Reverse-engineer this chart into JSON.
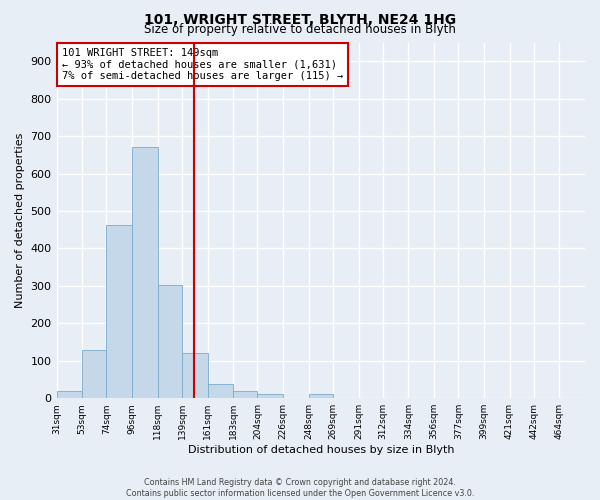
{
  "title": "101, WRIGHT STREET, BLYTH, NE24 1HG",
  "subtitle": "Size of property relative to detached houses in Blyth",
  "xlabel": "Distribution of detached houses by size in Blyth",
  "ylabel": "Number of detached properties",
  "bar_color": "#c5d8ea",
  "bar_edge_color": "#7aaac8",
  "vline_color": "#cc0000",
  "vline_x": 149,
  "bin_edges": [
    31,
    53,
    74,
    96,
    118,
    139,
    161,
    183,
    204,
    226,
    248,
    269,
    291,
    312,
    334,
    356,
    377,
    399,
    421,
    442,
    464,
    486
  ],
  "bar_heights": [
    18,
    128,
    462,
    672,
    303,
    120,
    37,
    18,
    10,
    0,
    10,
    0,
    0,
    0,
    0,
    0,
    0,
    0,
    0,
    0,
    0
  ],
  "tick_labels": [
    "31sqm",
    "53sqm",
    "74sqm",
    "96sqm",
    "118sqm",
    "139sqm",
    "161sqm",
    "183sqm",
    "204sqm",
    "226sqm",
    "248sqm",
    "269sqm",
    "291sqm",
    "312sqm",
    "334sqm",
    "356sqm",
    "377sqm",
    "399sqm",
    "421sqm",
    "442sqm",
    "464sqm"
  ],
  "annotation_text": "101 WRIGHT STREET: 149sqm\n← 93% of detached houses are smaller (1,631)\n7% of semi-detached houses are larger (115) →",
  "annotation_box_color": "#ffffff",
  "annotation_box_edge": "#cc0000",
  "ylim": [
    0,
    950
  ],
  "yticks": [
    0,
    100,
    200,
    300,
    400,
    500,
    600,
    700,
    800,
    900
  ],
  "footer_text": "Contains HM Land Registry data © Crown copyright and database right 2024.\nContains public sector information licensed under the Open Government Licence v3.0.",
  "background_color": "#e8eef5",
  "plot_bg_color": "#e8eef5",
  "grid_color": "#ffffff"
}
